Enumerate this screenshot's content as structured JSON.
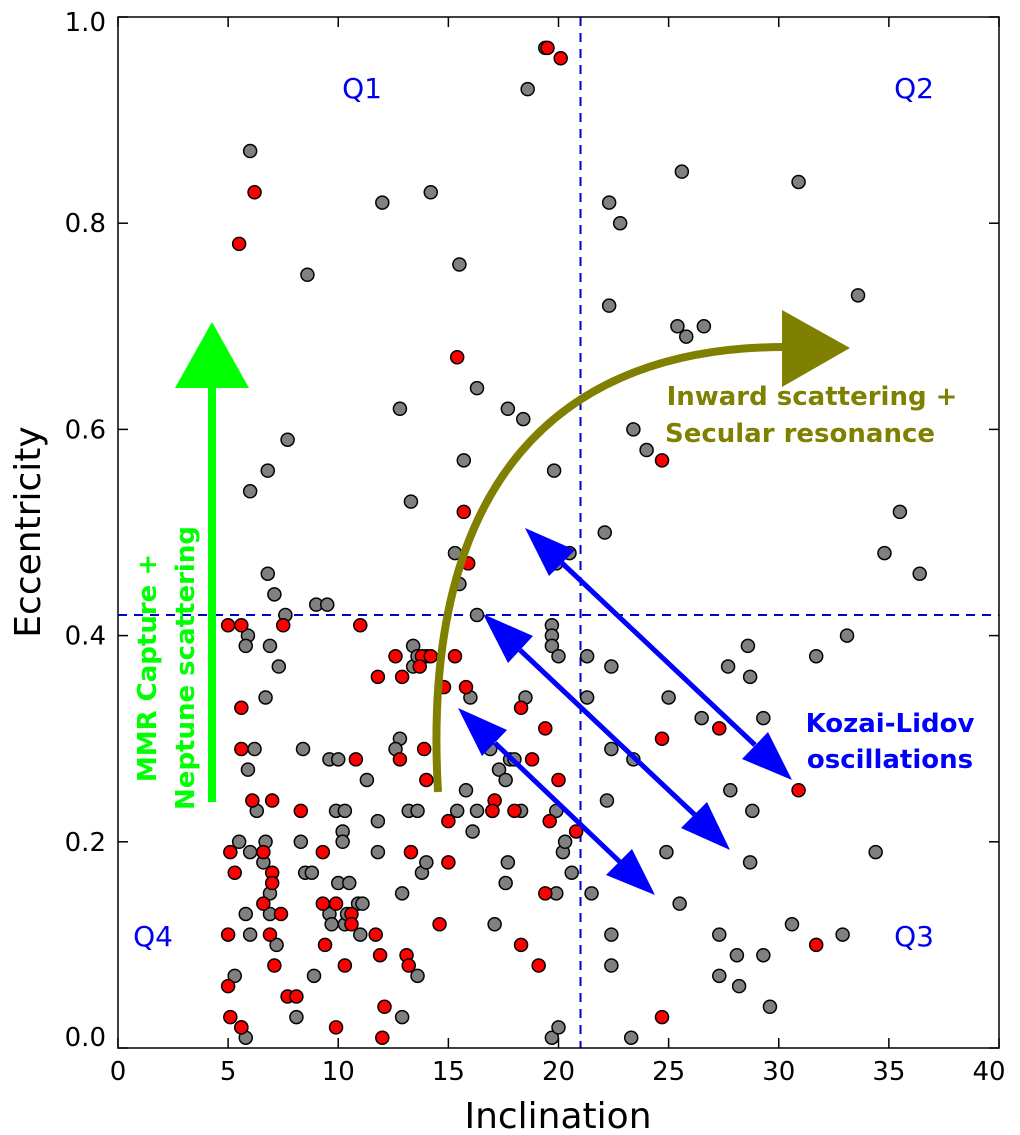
{
  "chart_data": {
    "type": "scatter",
    "title": "",
    "xlabel": "Inclination",
    "ylabel": "Eccentricity",
    "xlim": [
      0,
      40
    ],
    "ylim": [
      0,
      1.0
    ],
    "xticks": [
      0,
      5,
      10,
      15,
      20,
      25,
      30,
      35,
      40
    ],
    "xtick_labels": [
      "0",
      "5",
      "10",
      "15",
      "20",
      "25",
      "30",
      "35",
      "40"
    ],
    "yticks": [
      0.0,
      0.2,
      0.4,
      0.6,
      0.8,
      1.0
    ],
    "ytick_labels": [
      "0.0",
      "0.2",
      "0.4",
      "0.6",
      "0.8",
      "1.0"
    ],
    "grid": false,
    "reference_lines": {
      "x": 21,
      "y": 0.42,
      "color": "#0000cc",
      "style": "dashed"
    },
    "series": [
      {
        "color": "#808080",
        "points": [
          [
            19.4,
            0.97
          ],
          [
            18.6,
            0.93
          ],
          [
            6.0,
            0.87
          ],
          [
            25.6,
            0.85
          ],
          [
            30.9,
            0.84
          ],
          [
            14.2,
            0.83
          ],
          [
            12.0,
            0.82
          ],
          [
            22.3,
            0.82
          ],
          [
            22.8,
            0.8
          ],
          [
            15.5,
            0.76
          ],
          [
            8.6,
            0.75
          ],
          [
            22.3,
            0.72
          ],
          [
            33.6,
            0.73
          ],
          [
            25.4,
            0.7
          ],
          [
            26.6,
            0.7
          ],
          [
            25.8,
            0.69
          ],
          [
            16.3,
            0.64
          ],
          [
            12.8,
            0.62
          ],
          [
            17.7,
            0.62
          ],
          [
            18.4,
            0.61
          ],
          [
            7.7,
            0.59
          ],
          [
            23.4,
            0.6
          ],
          [
            24.0,
            0.58
          ],
          [
            15.7,
            0.57
          ],
          [
            6.8,
            0.56
          ],
          [
            19.8,
            0.56
          ],
          [
            6.0,
            0.54
          ],
          [
            13.3,
            0.53
          ],
          [
            35.5,
            0.52
          ],
          [
            22.1,
            0.5
          ],
          [
            15.3,
            0.48
          ],
          [
            20.5,
            0.48
          ],
          [
            34.8,
            0.48
          ],
          [
            15.5,
            0.45
          ],
          [
            19.9,
            0.47
          ],
          [
            6.8,
            0.46
          ],
          [
            7.1,
            0.44
          ],
          [
            36.4,
            0.46
          ],
          [
            9.0,
            0.43
          ],
          [
            9.5,
            0.43
          ],
          [
            7.6,
            0.42
          ],
          [
            16.3,
            0.42
          ],
          [
            5.9,
            0.4
          ],
          [
            5.8,
            0.39
          ],
          [
            19.7,
            0.41
          ],
          [
            19.7,
            0.4
          ],
          [
            19.7,
            0.39
          ],
          [
            20.0,
            0.38
          ],
          [
            21.3,
            0.38
          ],
          [
            22.4,
            0.37
          ],
          [
            6.9,
            0.39
          ],
          [
            13.4,
            0.39
          ],
          [
            13.4,
            0.37
          ],
          [
            33.1,
            0.4
          ],
          [
            28.6,
            0.39
          ],
          [
            31.7,
            0.38
          ],
          [
            7.3,
            0.37
          ],
          [
            27.7,
            0.37
          ],
          [
            28.7,
            0.36
          ],
          [
            13.6,
            0.38
          ],
          [
            14.0,
            0.38
          ],
          [
            16.0,
            0.34
          ],
          [
            6.7,
            0.34
          ],
          [
            18.5,
            0.34
          ],
          [
            21.3,
            0.34
          ],
          [
            25.0,
            0.34
          ],
          [
            12.8,
            0.3
          ],
          [
            12.6,
            0.29
          ],
          [
            8.4,
            0.29
          ],
          [
            9.6,
            0.28
          ],
          [
            10.0,
            0.28
          ],
          [
            16.9,
            0.29
          ],
          [
            22.4,
            0.29
          ],
          [
            29.3,
            0.32
          ],
          [
            26.5,
            0.32
          ],
          [
            6.2,
            0.29
          ],
          [
            5.9,
            0.27
          ],
          [
            11.3,
            0.26
          ],
          [
            17.3,
            0.27
          ],
          [
            17.6,
            0.26
          ],
          [
            17.8,
            0.28
          ],
          [
            18.0,
            0.28
          ],
          [
            23.4,
            0.28
          ],
          [
            15.8,
            0.25
          ],
          [
            16.3,
            0.23
          ],
          [
            17.0,
            0.23
          ],
          [
            27.8,
            0.25
          ],
          [
            6.3,
            0.23
          ],
          [
            9.9,
            0.23
          ],
          [
            10.3,
            0.23
          ],
          [
            13.2,
            0.23
          ],
          [
            13.6,
            0.23
          ],
          [
            15.4,
            0.23
          ],
          [
            18.3,
            0.23
          ],
          [
            19.9,
            0.23
          ],
          [
            22.2,
            0.24
          ],
          [
            28.8,
            0.23
          ],
          [
            11.8,
            0.22
          ],
          [
            16.1,
            0.21
          ],
          [
            10.2,
            0.21
          ],
          [
            10.2,
            0.2
          ],
          [
            5.5,
            0.2
          ],
          [
            6.7,
            0.2
          ],
          [
            8.3,
            0.2
          ],
          [
            13.8,
            0.17
          ],
          [
            14.0,
            0.18
          ],
          [
            20.2,
            0.19
          ],
          [
            20.3,
            0.2
          ],
          [
            20.6,
            0.17
          ],
          [
            24.9,
            0.19
          ],
          [
            11.8,
            0.19
          ],
          [
            6.0,
            0.19
          ],
          [
            6.6,
            0.18
          ],
          [
            6.9,
            0.15
          ],
          [
            8.5,
            0.17
          ],
          [
            8.8,
            0.17
          ],
          [
            10.0,
            0.16
          ],
          [
            10.5,
            0.16
          ],
          [
            17.7,
            0.18
          ],
          [
            17.6,
            0.16
          ],
          [
            19.9,
            0.15
          ],
          [
            21.5,
            0.15
          ],
          [
            34.4,
            0.19
          ],
          [
            28.7,
            0.18
          ],
          [
            10.9,
            0.14
          ],
          [
            11.1,
            0.14
          ],
          [
            9.6,
            0.13
          ],
          [
            9.7,
            0.12
          ],
          [
            10.3,
            0.12
          ],
          [
            10.4,
            0.13
          ],
          [
            12.9,
            0.15
          ],
          [
            17.1,
            0.12
          ],
          [
            25.5,
            0.14
          ],
          [
            30.6,
            0.12
          ],
          [
            22.4,
            0.11
          ],
          [
            27.3,
            0.11
          ],
          [
            32.9,
            0.11
          ],
          [
            6.9,
            0.13
          ],
          [
            5.8,
            0.13
          ],
          [
            6.0,
            0.11
          ],
          [
            7.2,
            0.1
          ],
          [
            11.0,
            0.11
          ],
          [
            28.1,
            0.09
          ],
          [
            29.3,
            0.09
          ],
          [
            22.4,
            0.08
          ],
          [
            27.3,
            0.07
          ],
          [
            28.2,
            0.06
          ],
          [
            5.3,
            0.07
          ],
          [
            8.9,
            0.07
          ],
          [
            13.6,
            0.07
          ],
          [
            29.6,
            0.04
          ],
          [
            12.9,
            0.03
          ],
          [
            8.1,
            0.03
          ],
          [
            19.7,
            0.01
          ],
          [
            20.0,
            0.02
          ],
          [
            23.3,
            0.01
          ],
          [
            5.6,
            0.02
          ],
          [
            5.8,
            0.01
          ]
        ]
      },
      {
        "color": "#ff0000",
        "points": [
          [
            19.5,
            0.97
          ],
          [
            20.1,
            0.96
          ],
          [
            6.2,
            0.83
          ],
          [
            5.5,
            0.78
          ],
          [
            15.4,
            0.67
          ],
          [
            24.7,
            0.57
          ],
          [
            15.7,
            0.52
          ],
          [
            15.9,
            0.47
          ],
          [
            5.0,
            0.41
          ],
          [
            5.6,
            0.41
          ],
          [
            7.5,
            0.41
          ],
          [
            11.0,
            0.41
          ],
          [
            12.6,
            0.38
          ],
          [
            13.8,
            0.38
          ],
          [
            14.2,
            0.38
          ],
          [
            15.3,
            0.38
          ],
          [
            11.8,
            0.36
          ],
          [
            12.9,
            0.36
          ],
          [
            13.7,
            0.37
          ],
          [
            14.8,
            0.35
          ],
          [
            15.8,
            0.35
          ],
          [
            5.6,
            0.33
          ],
          [
            18.3,
            0.33
          ],
          [
            19.4,
            0.31
          ],
          [
            27.3,
            0.31
          ],
          [
            24.7,
            0.3
          ],
          [
            5.6,
            0.29
          ],
          [
            13.9,
            0.29
          ],
          [
            12.8,
            0.28
          ],
          [
            10.8,
            0.28
          ],
          [
            18.8,
            0.28
          ],
          [
            20.0,
            0.26
          ],
          [
            14.0,
            0.26
          ],
          [
            30.9,
            0.25
          ],
          [
            6.1,
            0.24
          ],
          [
            7.0,
            0.24
          ],
          [
            17.1,
            0.24
          ],
          [
            8.3,
            0.23
          ],
          [
            17.0,
            0.23
          ],
          [
            18.0,
            0.23
          ],
          [
            15.0,
            0.22
          ],
          [
            19.6,
            0.22
          ],
          [
            20.8,
            0.21
          ],
          [
            5.1,
            0.19
          ],
          [
            6.6,
            0.19
          ],
          [
            9.3,
            0.19
          ],
          [
            13.3,
            0.19
          ],
          [
            15.0,
            0.18
          ],
          [
            5.3,
            0.17
          ],
          [
            7.0,
            0.17
          ],
          [
            7.0,
            0.16
          ],
          [
            19.4,
            0.15
          ],
          [
            6.6,
            0.14
          ],
          [
            9.3,
            0.14
          ],
          [
            9.9,
            0.14
          ],
          [
            7.4,
            0.13
          ],
          [
            10.6,
            0.13
          ],
          [
            10.6,
            0.12
          ],
          [
            14.6,
            0.12
          ],
          [
            6.9,
            0.11
          ],
          [
            5.0,
            0.11
          ],
          [
            11.7,
            0.11
          ],
          [
            9.4,
            0.1
          ],
          [
            18.3,
            0.1
          ],
          [
            31.7,
            0.1
          ],
          [
            11.9,
            0.09
          ],
          [
            13.1,
            0.09
          ],
          [
            13.2,
            0.08
          ],
          [
            7.1,
            0.08
          ],
          [
            10.3,
            0.08
          ],
          [
            19.1,
            0.08
          ],
          [
            5.0,
            0.06
          ],
          [
            7.7,
            0.05
          ],
          [
            8.1,
            0.05
          ],
          [
            12.1,
            0.04
          ],
          [
            5.1,
            0.03
          ],
          [
            24.7,
            0.03
          ],
          [
            5.6,
            0.02
          ],
          [
            9.9,
            0.02
          ],
          [
            12.0,
            0.01
          ]
        ]
      }
    ],
    "annotations": {
      "quadrants": [
        "Q1",
        "Q2",
        "Q3",
        "Q4"
      ],
      "quadrant_color": "#0000ee",
      "mmr_line1": "MMR Capture +",
      "mmr_line2": "Neptune scattering",
      "mmr_color": "#00ff00",
      "inward_line1": "Inward scattering +",
      "inward_line2": "Secular resonance",
      "inward_color": "#808000",
      "kozai_line1": "Kozai-Lidov",
      "kozai_line2": "oscillations",
      "kozai_color": "#0000ff"
    }
  }
}
